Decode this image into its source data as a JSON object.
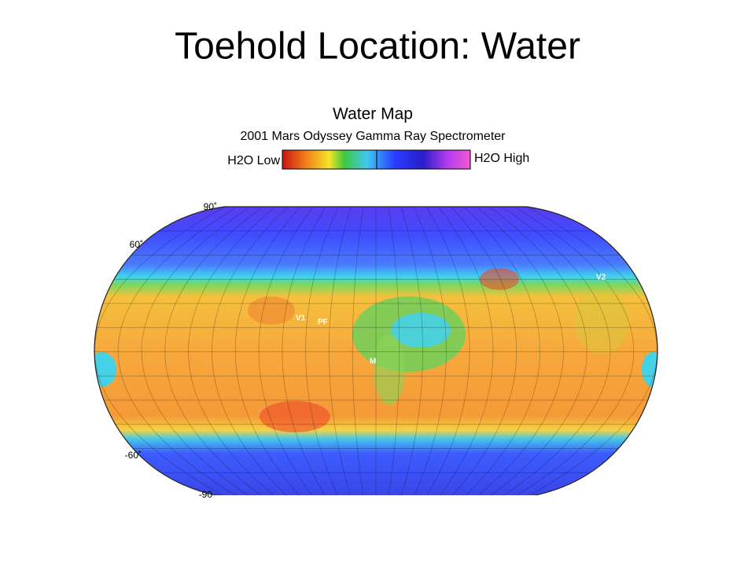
{
  "header": {
    "title": "Toehold Location: Water"
  },
  "map": {
    "title": "Water Map",
    "subtitle": "2001 Mars Odyssey Gamma Ray Spectrometer",
    "legend": {
      "low": "H2O Low",
      "high": "H2O High"
    },
    "latitude_labels": [
      "90˚",
      "60˚",
      "-60˚",
      "-90"
    ],
    "site_labels": [
      "V1",
      "PF",
      "M",
      "V2"
    ]
  }
}
